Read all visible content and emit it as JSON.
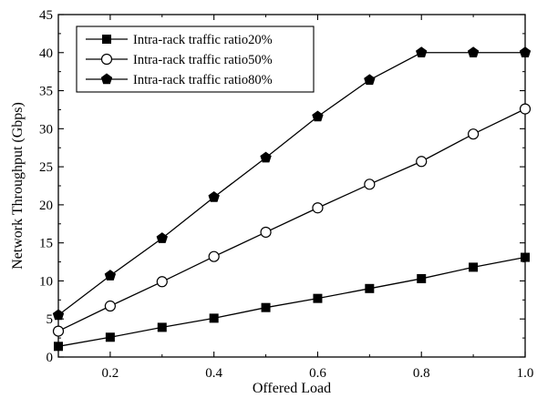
{
  "chart_data": {
    "type": "line",
    "title": "",
    "xlabel": "Offered Load",
    "ylabel": "Network Throughput (Gbps)",
    "xlim": [
      0.1,
      1.0
    ],
    "ylim": [
      0,
      45
    ],
    "xticks": [
      0.2,
      0.4,
      0.6,
      0.8,
      1.0
    ],
    "xtick_labels": [
      "0.2",
      "0.4",
      "0.6",
      "0.8",
      "1.0"
    ],
    "yticks": [
      0,
      5,
      10,
      15,
      20,
      25,
      30,
      35,
      40,
      45
    ],
    "ytick_labels": [
      "0",
      "5",
      "10",
      "15",
      "20",
      "25",
      "30",
      "35",
      "40",
      "45"
    ],
    "grid": false,
    "legend_position": "top-left",
    "x": [
      0.1,
      0.2,
      0.3,
      0.4,
      0.5,
      0.6,
      0.7,
      0.8,
      0.9,
      1.0
    ],
    "series": [
      {
        "name": "Intra-rack traffic ratio20%",
        "marker": "filled-square",
        "color": "#000000",
        "values": [
          1.4,
          2.6,
          3.9,
          5.1,
          6.5,
          7.7,
          9.0,
          10.3,
          11.8,
          13.1
        ]
      },
      {
        "name": "Intra-rack traffic ratio50%",
        "marker": "open-circle",
        "color": "#000000",
        "values": [
          3.4,
          6.7,
          9.9,
          13.2,
          16.4,
          19.6,
          22.7,
          25.7,
          29.3,
          32.6
        ]
      },
      {
        "name": "Intra-rack traffic ratio80%",
        "marker": "filled-pentagon",
        "color": "#000000",
        "values": [
          5.5,
          10.7,
          15.6,
          21.0,
          26.2,
          31.6,
          36.4,
          40.0,
          40.0,
          40.0
        ]
      }
    ]
  }
}
